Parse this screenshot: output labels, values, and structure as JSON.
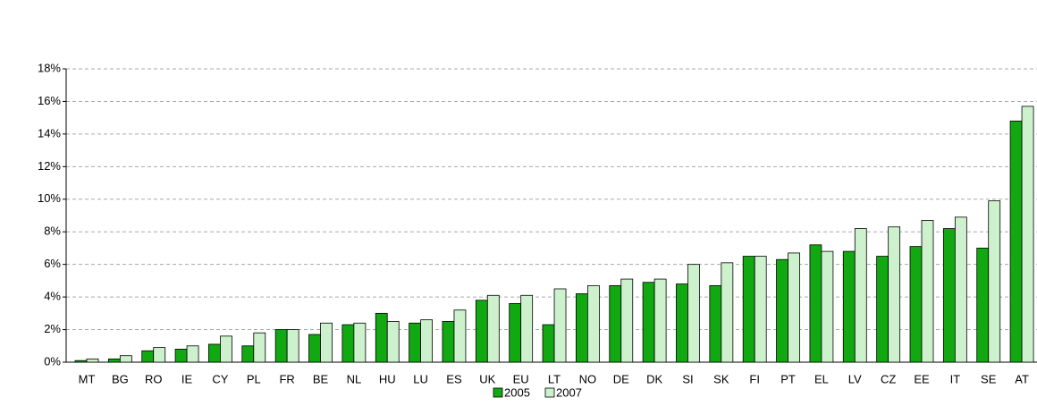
{
  "chart_data": {
    "type": "bar",
    "categories": [
      "MT",
      "BG",
      "RO",
      "IE",
      "CY",
      "PL",
      "FR",
      "BE",
      "NL",
      "HU",
      "LU",
      "ES",
      "UK",
      "EU",
      "LT",
      "NO",
      "DE",
      "DK",
      "SI",
      "SK",
      "FI",
      "PT",
      "EL",
      "LV",
      "CZ",
      "EE",
      "IT",
      "SE",
      "AT"
    ],
    "series": [
      {
        "name": "2005",
        "color": "#12a812",
        "values": [
          0.1,
          0.2,
          0.7,
          0.8,
          1.1,
          1.0,
          2.0,
          1.7,
          2.3,
          3.0,
          2.4,
          2.5,
          3.8,
          3.6,
          2.3,
          4.2,
          4.7,
          4.9,
          4.8,
          4.7,
          6.5,
          6.3,
          7.2,
          6.8,
          6.5,
          7.1,
          8.2,
          7.0,
          14.8
        ]
      },
      {
        "name": "2007",
        "color": "#cdf1cd",
        "values": [
          0.2,
          0.4,
          0.9,
          1.0,
          1.6,
          1.8,
          2.0,
          2.4,
          2.4,
          2.5,
          2.6,
          3.2,
          4.1,
          4.1,
          4.5,
          4.7,
          5.1,
          5.1,
          6.0,
          6.1,
          6.5,
          6.7,
          6.8,
          8.2,
          8.3,
          8.7,
          8.9,
          9.9,
          15.7
        ]
      }
    ],
    "ylim": [
      0,
      18
    ],
    "yticks": [
      {
        "value": 0,
        "label": "0%"
      },
      {
        "value": 2,
        "label": "2%"
      },
      {
        "value": 4,
        "label": "4%"
      },
      {
        "value": 6,
        "label": "6%"
      },
      {
        "value": 8,
        "label": "8%"
      },
      {
        "value": 10,
        "label": "10%"
      },
      {
        "value": 12,
        "label": "12%"
      },
      {
        "value": 14,
        "label": "14%"
      },
      {
        "value": 16,
        "label": "16%"
      },
      {
        "value": 18,
        "label": "18%"
      }
    ],
    "grid": true,
    "legend": "bottom"
  }
}
